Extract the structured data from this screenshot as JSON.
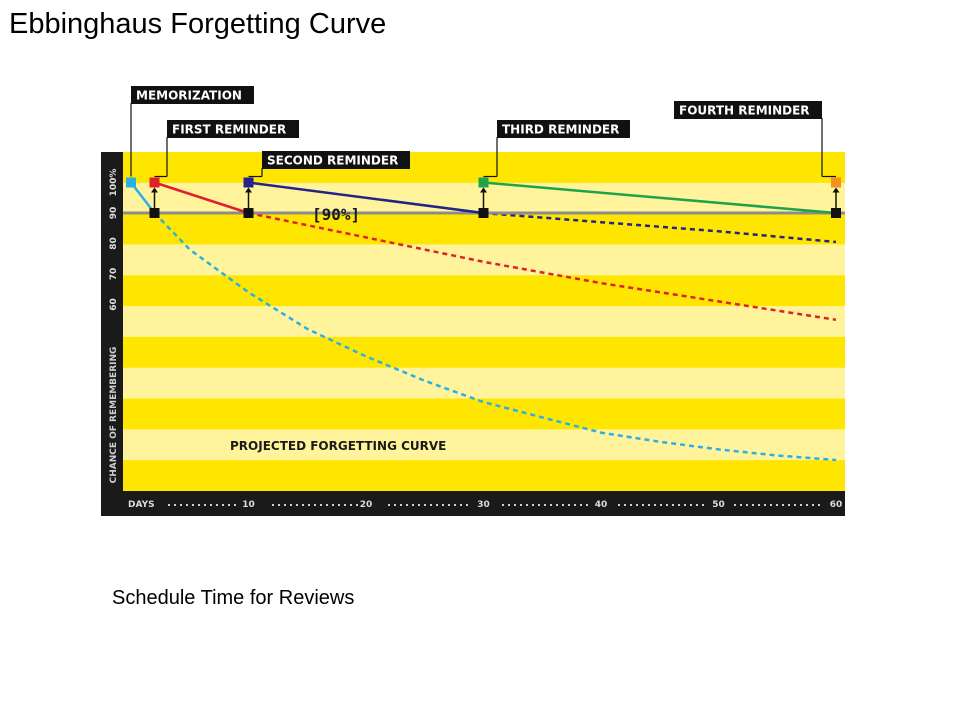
{
  "slide": {
    "title": "Ebbinghaus Forgetting Curve",
    "caption": "Schedule Time for Reviews"
  },
  "chart_data": {
    "type": "line",
    "xlabel": "DAYS",
    "ylabel": "CHANCE OF REMEMBERING",
    "x_ticks": [
      10,
      20,
      30,
      40,
      50,
      60
    ],
    "y_ticks": [
      {
        "value": 100,
        "label": "100%"
      },
      {
        "value": 90,
        "label": "90"
      },
      {
        "value": 80,
        "label": "80"
      },
      {
        "value": 70,
        "label": "70"
      },
      {
        "value": 60,
        "label": "60"
      }
    ],
    "xlim": [
      0,
      60
    ],
    "ylim": [
      0,
      110
    ],
    "threshold": {
      "value": 90,
      "label": "[90%]"
    },
    "projected_label": "PROJECTED FORGETTING CURVE",
    "background": {
      "stripe_a": "#ffe600",
      "stripe_b": "#fff49c",
      "axis_bar": "#1a1a1a"
    },
    "events": [
      {
        "label": "MEMORIZATION",
        "day": 0,
        "color": "#2ab0e4"
      },
      {
        "label": "FIRST REMINDER",
        "day": 2,
        "color": "#e0202a"
      },
      {
        "label": "SECOND REMINDER",
        "day": 10,
        "color": "#23238a"
      },
      {
        "label": "THIRD REMINDER",
        "day": 30,
        "color": "#1ea34a"
      },
      {
        "label": "FOURTH REMINDER",
        "day": 60,
        "color": "#f29321"
      }
    ],
    "series": [
      {
        "color": "#2ab0e4",
        "decay": [
          [
            0,
            100
          ],
          [
            2,
            90
          ]
        ],
        "projected": [
          [
            2,
            90
          ],
          [
            5,
            78
          ],
          [
            10,
            64
          ],
          [
            15,
            52
          ],
          [
            20,
            43
          ],
          [
            25,
            35
          ],
          [
            30,
            28
          ],
          [
            35,
            23
          ],
          [
            40,
            18
          ],
          [
            45,
            15
          ],
          [
            50,
            12.5
          ],
          [
            55,
            10.5
          ],
          [
            60,
            9
          ]
        ]
      },
      {
        "color": "#e0202a",
        "decay": [
          [
            2,
            100
          ],
          [
            10,
            90
          ]
        ],
        "projected": [
          [
            10,
            90
          ],
          [
            20,
            82
          ],
          [
            30,
            74
          ],
          [
            40,
            67
          ],
          [
            50,
            61
          ],
          [
            60,
            55
          ]
        ]
      },
      {
        "color": "#23238a",
        "decay": [
          [
            10,
            100
          ],
          [
            30,
            90
          ]
        ],
        "projected": [
          [
            30,
            90
          ],
          [
            40,
            87
          ],
          [
            50,
            84
          ],
          [
            60,
            80.5
          ]
        ]
      },
      {
        "color": "#1ea34a",
        "decay": [
          [
            30,
            100
          ],
          [
            60,
            90
          ]
        ],
        "projected": []
      }
    ]
  }
}
